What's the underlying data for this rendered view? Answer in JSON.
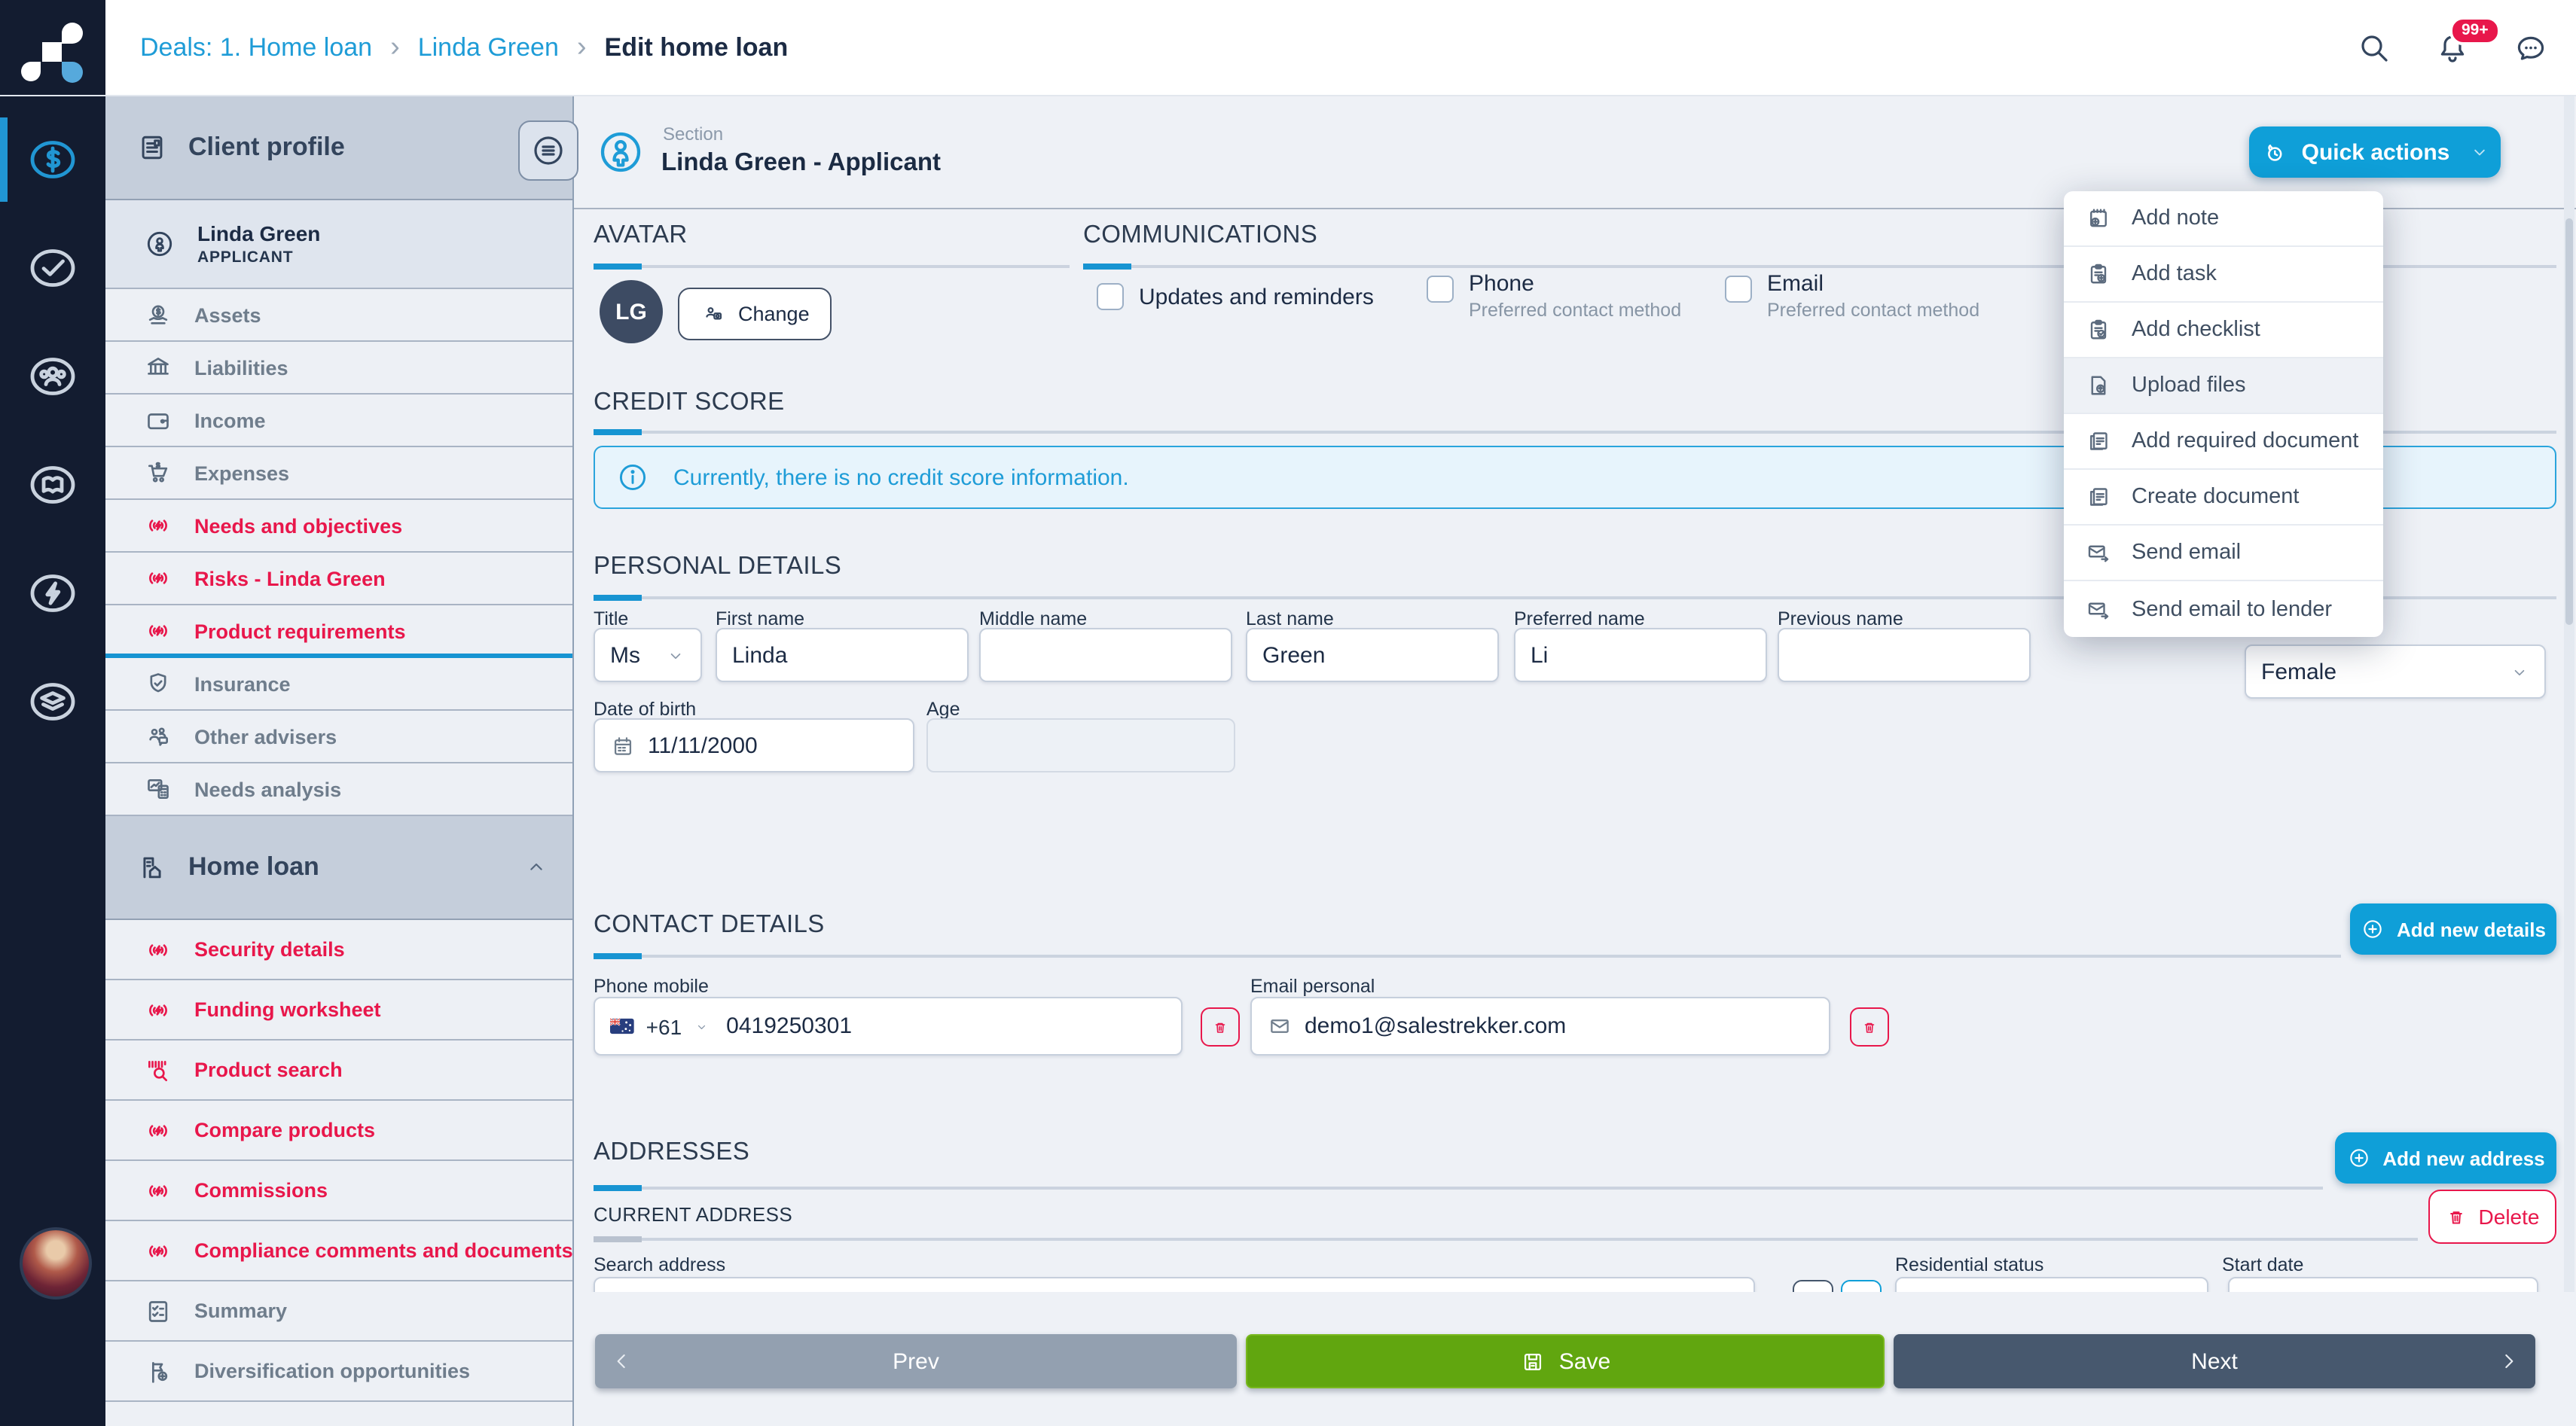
{
  "topbar": {
    "breadcrumbs": [
      {
        "label": "Deals: 1. Home loan"
      },
      {
        "label": "Linda Green"
      },
      {
        "label": "Edit home loan"
      }
    ],
    "notification_badge": "99+",
    "icons": [
      "search-icon",
      "bell-icon",
      "chat-icon"
    ]
  },
  "rail": {
    "items": [
      {
        "icon": "dollar-circle",
        "cls": "active"
      },
      {
        "icon": "check-circle",
        "cls": ""
      },
      {
        "icon": "people-circle",
        "cls": ""
      },
      {
        "icon": "book-circle",
        "cls": ""
      },
      {
        "icon": "bolt-circle",
        "cls": ""
      },
      {
        "icon": "layers-circle",
        "cls": ""
      }
    ]
  },
  "sidebar": {
    "client_profile_title": "Client profile",
    "person": {
      "name": "Linda Green",
      "role": "APPLICANT",
      "icon": "person-circle"
    },
    "client_profile_items": [
      {
        "label": "Assets",
        "icon": "assets",
        "cls": "gray"
      },
      {
        "label": "Liabilities",
        "icon": "bank",
        "cls": "gray"
      },
      {
        "label": "Income",
        "icon": "wallet",
        "cls": "gray"
      },
      {
        "label": "Expenses",
        "icon": "cart",
        "cls": "gray"
      },
      {
        "label": "Needs and objectives",
        "icon": "beacon",
        "cls": "red"
      },
      {
        "label": "Risks - Linda Green",
        "icon": "beacon",
        "cls": "red"
      },
      {
        "label": "Product requirements",
        "icon": "beacon",
        "cls": "red active"
      },
      {
        "label": "Insurance",
        "icon": "shield",
        "cls": "gray"
      },
      {
        "label": "Other advisers",
        "icon": "advisers",
        "cls": "gray"
      },
      {
        "label": "Needs analysis",
        "icon": "analysis",
        "cls": "gray"
      }
    ],
    "home_loan_title": "Home loan",
    "home_loan_items": [
      {
        "label": "Security details",
        "icon": "beacon",
        "cls": "red"
      },
      {
        "label": "Funding worksheet",
        "icon": "beacon",
        "cls": "red"
      },
      {
        "label": "Product search",
        "icon": "barcode-search",
        "cls": "red"
      },
      {
        "label": "Compare products",
        "icon": "beacon",
        "cls": "red"
      },
      {
        "label": "Commissions",
        "icon": "beacon",
        "cls": "red"
      },
      {
        "label": "Compliance comments and documents",
        "icon": "beacon",
        "cls": "red"
      },
      {
        "label": "Summary",
        "icon": "checklist",
        "cls": "gray"
      },
      {
        "label": "Diversification opportunities",
        "icon": "flag-plus",
        "cls": "gray"
      }
    ]
  },
  "main": {
    "section_label": "Section",
    "section_title": "Linda Green - Applicant",
    "quick_actions": {
      "label": "Quick actions",
      "icon": "flame-clock",
      "menu": [
        {
          "label": "Add note",
          "icon": "note-add",
          "cls": ""
        },
        {
          "label": "Add task",
          "icon": "task-add",
          "cls": ""
        },
        {
          "label": "Add checklist",
          "icon": "checklist-add",
          "cls": ""
        },
        {
          "label": "Upload files",
          "icon": "upload-file",
          "cls": "hover"
        },
        {
          "label": "Add required document",
          "icon": "folder-doc",
          "cls": ""
        },
        {
          "label": "Create document",
          "icon": "folder-doc",
          "cls": ""
        },
        {
          "label": "Send email",
          "icon": "envelope-arrow",
          "cls": ""
        },
        {
          "label": "Send email to lender",
          "icon": "envelope-arrow",
          "cls": ""
        }
      ]
    },
    "avatar": {
      "title": "AVATAR",
      "initials": "LG",
      "change_label": "Change"
    },
    "communications": {
      "title": "COMMUNICATIONS",
      "options": [
        {
          "label": "Updates and reminders",
          "sub": ""
        },
        {
          "label": "Phone",
          "sub": "Preferred contact method"
        },
        {
          "label": "Email",
          "sub": "Preferred contact method"
        }
      ]
    },
    "credit_score": {
      "title": "CREDIT SCORE",
      "message": "Currently, there is no credit score information."
    },
    "personal_details": {
      "title": "PERSONAL DETAILS",
      "fields": {
        "title": {
          "label": "Title",
          "value": "Ms"
        },
        "first_name": {
          "label": "First name",
          "value": "Linda"
        },
        "middle_name": {
          "label": "Middle name",
          "value": ""
        },
        "last_name": {
          "label": "Last name",
          "value": "Green"
        },
        "preferred_name": {
          "label": "Preferred name",
          "value": "Li"
        },
        "previous_name": {
          "label": "Previous name",
          "value": ""
        },
        "gender": {
          "value": "Female"
        },
        "date_of_birth": {
          "label": "Date of birth",
          "value": "11/11/2000"
        },
        "age": {
          "label": "Age",
          "value": ""
        }
      }
    },
    "contact_details": {
      "title": "CONTACT DETAILS",
      "add_button": "Add new details",
      "phone": {
        "label": "Phone mobile",
        "country_code": "+61",
        "value": "0419250301"
      },
      "email": {
        "label": "Email personal",
        "value": "demo1@salestrekker.com"
      }
    },
    "addresses": {
      "title": "ADDRESSES",
      "add_button": "Add new address",
      "current": {
        "title": "CURRENT ADDRESS",
        "delete_button": "Delete",
        "search_label": "Search address",
        "residential_label": "Residential status",
        "start_label": "Start date"
      }
    }
  },
  "footer": {
    "prev": "Prev",
    "save": "Save",
    "next": "Next"
  },
  "colors": {
    "accent_blue": "#0f9fd8",
    "link_blue": "#1e9cd7",
    "alert_red": "#e8174b",
    "save_green": "#61a60f",
    "navy": "#131c30",
    "slate": "#47586e",
    "gray_button": "#93a0b0"
  }
}
